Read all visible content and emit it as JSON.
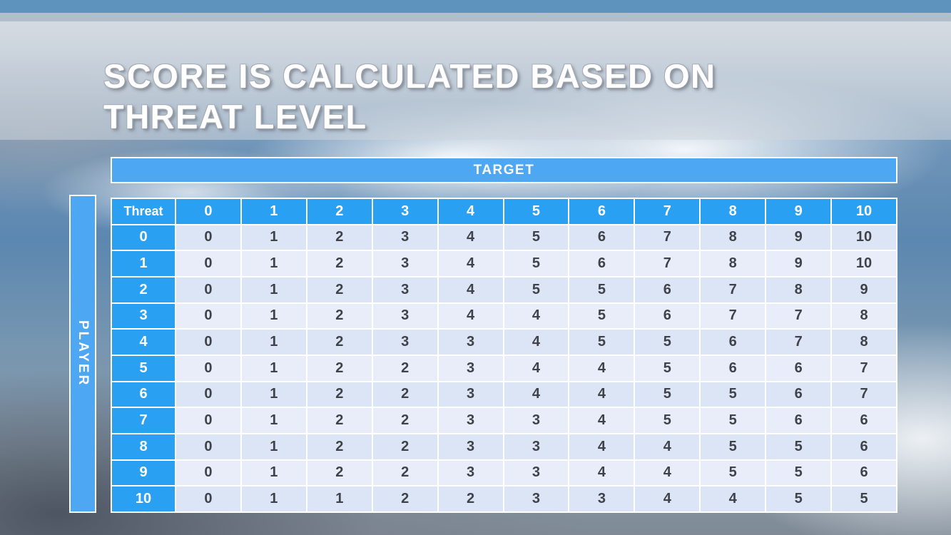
{
  "slide": {
    "title_line1": "SCORE IS CALCULATED BASED ON",
    "title_line2": "THREAT LEVEL"
  },
  "table": {
    "target_label": "TARGET",
    "player_label": "PLAYER",
    "corner_label": "Threat",
    "column_headers": [
      "0",
      "1",
      "2",
      "3",
      "4",
      "5",
      "6",
      "7",
      "8",
      "9",
      "10"
    ],
    "rows": [
      {
        "label": "0",
        "values": [
          "0",
          "1",
          "2",
          "3",
          "4",
          "5",
          "6",
          "7",
          "8",
          "9",
          "10"
        ]
      },
      {
        "label": "1",
        "values": [
          "0",
          "1",
          "2",
          "3",
          "4",
          "5",
          "6",
          "7",
          "8",
          "9",
          "10"
        ]
      },
      {
        "label": "2",
        "values": [
          "0",
          "1",
          "2",
          "3",
          "4",
          "5",
          "5",
          "6",
          "7",
          "8",
          "9"
        ]
      },
      {
        "label": "3",
        "values": [
          "0",
          "1",
          "2",
          "3",
          "4",
          "4",
          "5",
          "6",
          "7",
          "7",
          "8"
        ]
      },
      {
        "label": "4",
        "values": [
          "0",
          "1",
          "2",
          "3",
          "3",
          "4",
          "5",
          "5",
          "6",
          "7",
          "8"
        ]
      },
      {
        "label": "5",
        "values": [
          "0",
          "1",
          "2",
          "2",
          "3",
          "4",
          "4",
          "5",
          "6",
          "6",
          "7"
        ]
      },
      {
        "label": "6",
        "values": [
          "0",
          "1",
          "2",
          "2",
          "3",
          "4",
          "4",
          "5",
          "5",
          "6",
          "7"
        ]
      },
      {
        "label": "7",
        "values": [
          "0",
          "1",
          "2",
          "2",
          "3",
          "3",
          "4",
          "5",
          "5",
          "6",
          "6"
        ]
      },
      {
        "label": "8",
        "values": [
          "0",
          "1",
          "2",
          "2",
          "3",
          "3",
          "4",
          "4",
          "5",
          "5",
          "6"
        ]
      },
      {
        "label": "9",
        "values": [
          "0",
          "1",
          "2",
          "2",
          "3",
          "3",
          "4",
          "4",
          "5",
          "5",
          "6"
        ]
      },
      {
        "label": "10",
        "values": [
          "0",
          "1",
          "1",
          "2",
          "2",
          "3",
          "3",
          "4",
          "4",
          "5",
          "5"
        ]
      }
    ]
  },
  "colors": {
    "accent_strip": "#5e93bd",
    "header_blue": "#29a0f2",
    "bar_blue": "#4da7f3",
    "row_even": "#dce5f6",
    "row_odd": "#e9edfa",
    "cell_text": "#3f4349"
  }
}
